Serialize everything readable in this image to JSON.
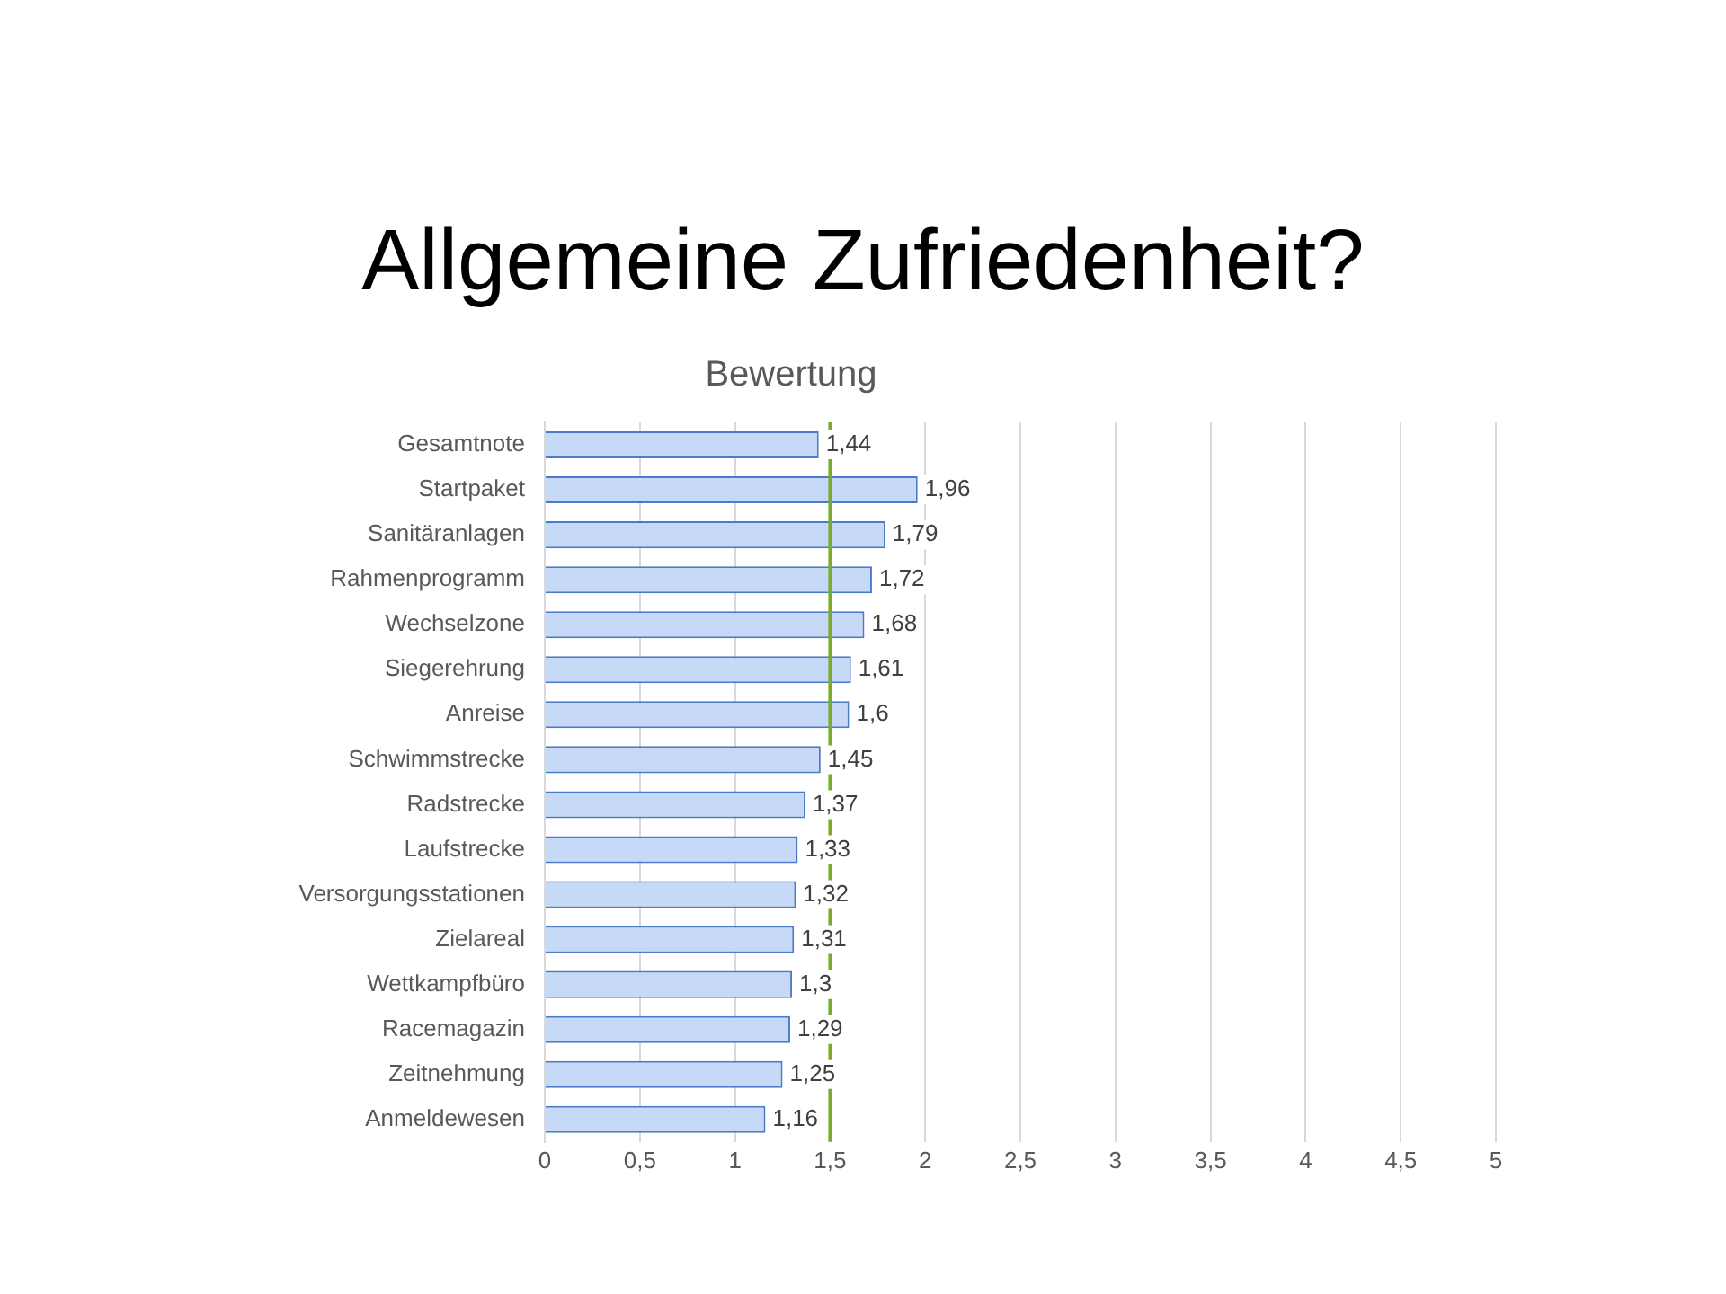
{
  "chart_data": {
    "type": "bar",
    "orientation": "horizontal",
    "title": "Bewertung",
    "subtitle": "Allgemeine Zufriedenheit?",
    "categories": [
      "Gesamtnote",
      "Startpaket",
      "Sanitäranlagen",
      "Rahmenprogramm",
      "Wechselzone",
      "Siegerehrung",
      "Anreise",
      "Schwimmstrecke",
      "Radstrecke",
      "Laufstrecke",
      "Versorgungsstationen",
      "Zielareal",
      "Wettkampfbüro",
      "Racemagazin",
      "Zeitnehmung",
      "Anmeldewesen"
    ],
    "values": [
      1.44,
      1.96,
      1.79,
      1.72,
      1.68,
      1.61,
      1.6,
      1.45,
      1.37,
      1.33,
      1.32,
      1.31,
      1.3,
      1.29,
      1.25,
      1.16
    ],
    "value_labels": [
      "1,44",
      "1,96",
      "1,79",
      "1,72",
      "1,68",
      "1,61",
      "1,6",
      "1,45",
      "1,37",
      "1,33",
      "1,32",
      "1,31",
      "1,3",
      "1,29",
      "1,25",
      "1,16"
    ],
    "color": "#c6d9f6",
    "xlim": [
      0,
      5
    ],
    "xticks": [
      0,
      {
        "value": 0.5,
        "label": "0,5"
      },
      1,
      {
        "value": 1.5,
        "label": "1,5"
      },
      2,
      {
        "value": 2.5,
        "label": "2,5"
      },
      3,
      {
        "value": 3.5,
        "label": "3,5"
      },
      4,
      {
        "value": 4.5,
        "label": "4,5"
      },
      5
    ],
    "grid": "x",
    "legend": false,
    "ref_lines": [
      {
        "axis": "x",
        "value": 1.5,
        "color": "#7aab2c"
      }
    ]
  }
}
